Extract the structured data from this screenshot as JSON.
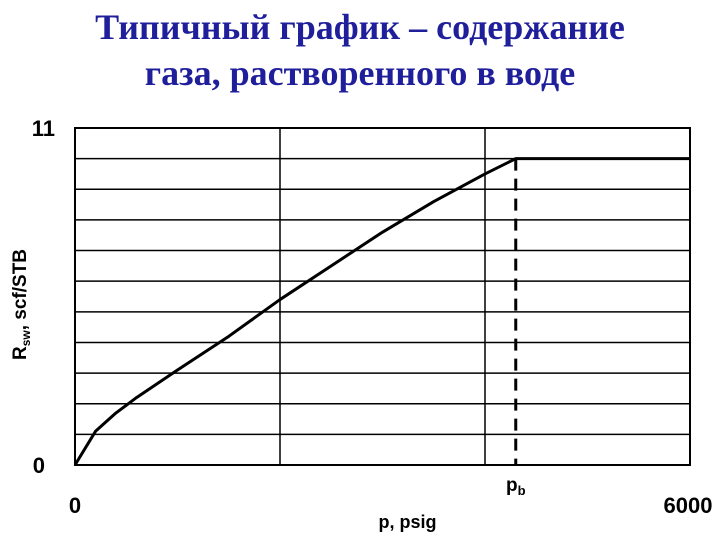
{
  "title": {
    "line1": "Типичный график – содержание",
    "line2": "газа, растворенного в воде"
  },
  "chart_data": {
    "type": "line",
    "xlabel": "p, psig",
    "ylabel": "R",
    "ylabel_sub": "sw",
    "ylabel_rest": ", scf/STB",
    "xlim": [
      0,
      6000
    ],
    "ylim": [
      0,
      11
    ],
    "x_tick_labels": [
      "0",
      "6000"
    ],
    "y_tick_labels": [
      "0",
      "11"
    ],
    "annotations": [
      {
        "label": "p",
        "sub": "b",
        "x": 4300
      }
    ],
    "grid": true,
    "series": [
      {
        "x": [
          0,
          200,
          400,
          600,
          1000,
          1500,
          2000,
          2500,
          3000,
          3500,
          4000,
          4300,
          6000
        ],
        "y": [
          0,
          1.1,
          1.7,
          2.2,
          3.1,
          4.2,
          5.4,
          6.5,
          7.6,
          8.6,
          9.5,
          10.0,
          10.0
        ]
      }
    ],
    "colors": {
      "line": "#000000",
      "grid": "#000000",
      "title": "#1f1f9c"
    }
  }
}
